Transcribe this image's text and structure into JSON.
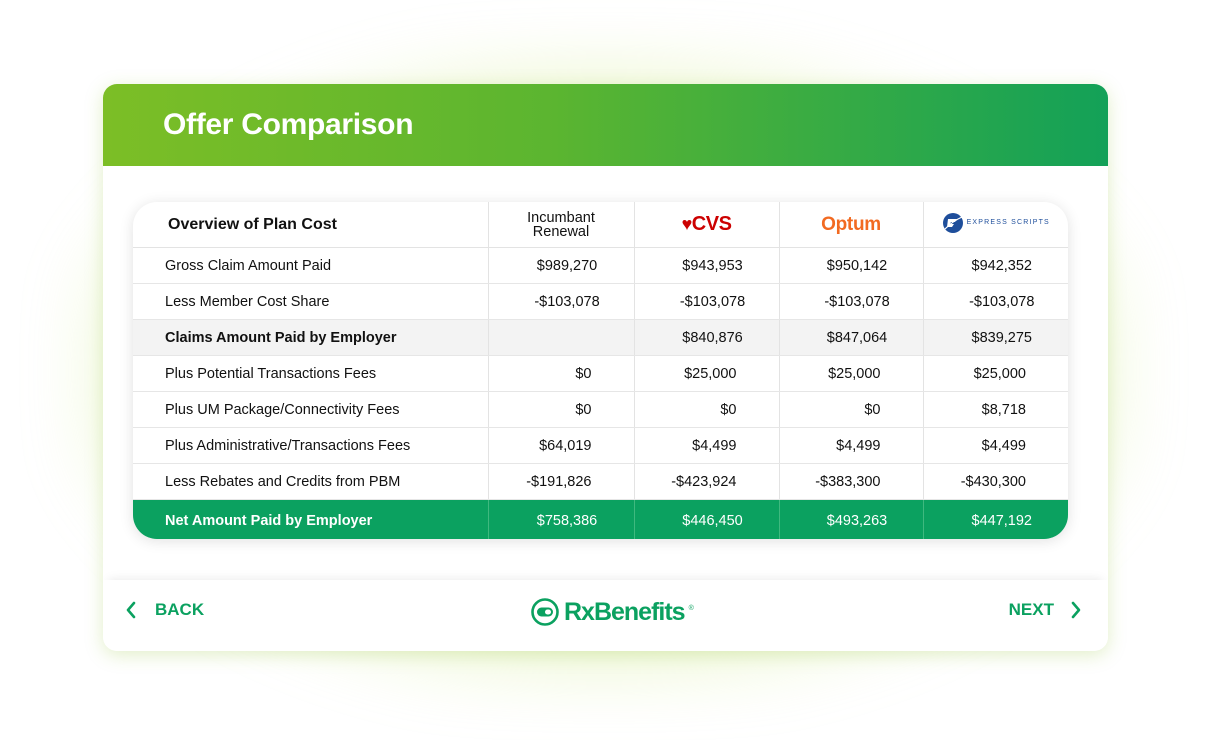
{
  "header": {
    "title": "Offer Comparison"
  },
  "table": {
    "overview_label": "Overview of Plan Cost",
    "columns": {
      "incumbent": "Incumbant Renewal",
      "cvs": "CVS",
      "optum": "Optum",
      "express_scripts": "EXPRESS SCRIPTS"
    },
    "rows": [
      {
        "label": "Gross Claim Amount Paid",
        "values": [
          "$989,270",
          "$943,953",
          "$950,142",
          "$942,352"
        ]
      },
      {
        "label": "Less Member Cost Share",
        "values": [
          "-$103,078",
          "-$103,078",
          "-$103,078",
          "-$103,078"
        ]
      },
      {
        "label": "Claims Amount Paid by Employer",
        "values": [
          "",
          "$840,876",
          "$847,064",
          "$839,275"
        ]
      },
      {
        "label": "Plus Potential Transactions Fees",
        "values": [
          "$0",
          "$25,000",
          "$25,000",
          "$25,000"
        ]
      },
      {
        "label": "Plus UM Package/Connectivity Fees",
        "values": [
          "$0",
          "$0",
          "$0",
          "$8,718"
        ]
      },
      {
        "label": "Plus Administrative/Transactions Fees",
        "values": [
          "$64,019",
          "$4,499",
          "$4,499",
          "$4,499"
        ]
      },
      {
        "label": "Less Rebates and Credits from PBM",
        "values": [
          "-$191,826",
          "-$423,924",
          "-$383,300",
          "-$430,300"
        ]
      }
    ],
    "total": {
      "label": "Net Amount Paid by Employer",
      "values": [
        "$758,386",
        "$446,450",
        "$493,263",
        "$447,192"
      ]
    }
  },
  "footer": {
    "back_label": "BACK",
    "next_label": "NEXT",
    "logo_text": "RxBenefits",
    "logo_mark": "®"
  },
  "colors": {
    "brand_green": "#0ba160",
    "header_gradient_start": "#7cbe26",
    "header_gradient_end": "#13a158",
    "cvs_red": "#cc0000",
    "optum_orange": "#f26a21",
    "express_scripts_blue": "#1e4e9b"
  },
  "icons": {
    "back": "chevron-left-icon",
    "next": "chevron-right-icon",
    "cvs": "heart-icon",
    "express_scripts": "express-scripts-logo-icon",
    "rxbenefits": "rxbenefits-logo-icon"
  }
}
